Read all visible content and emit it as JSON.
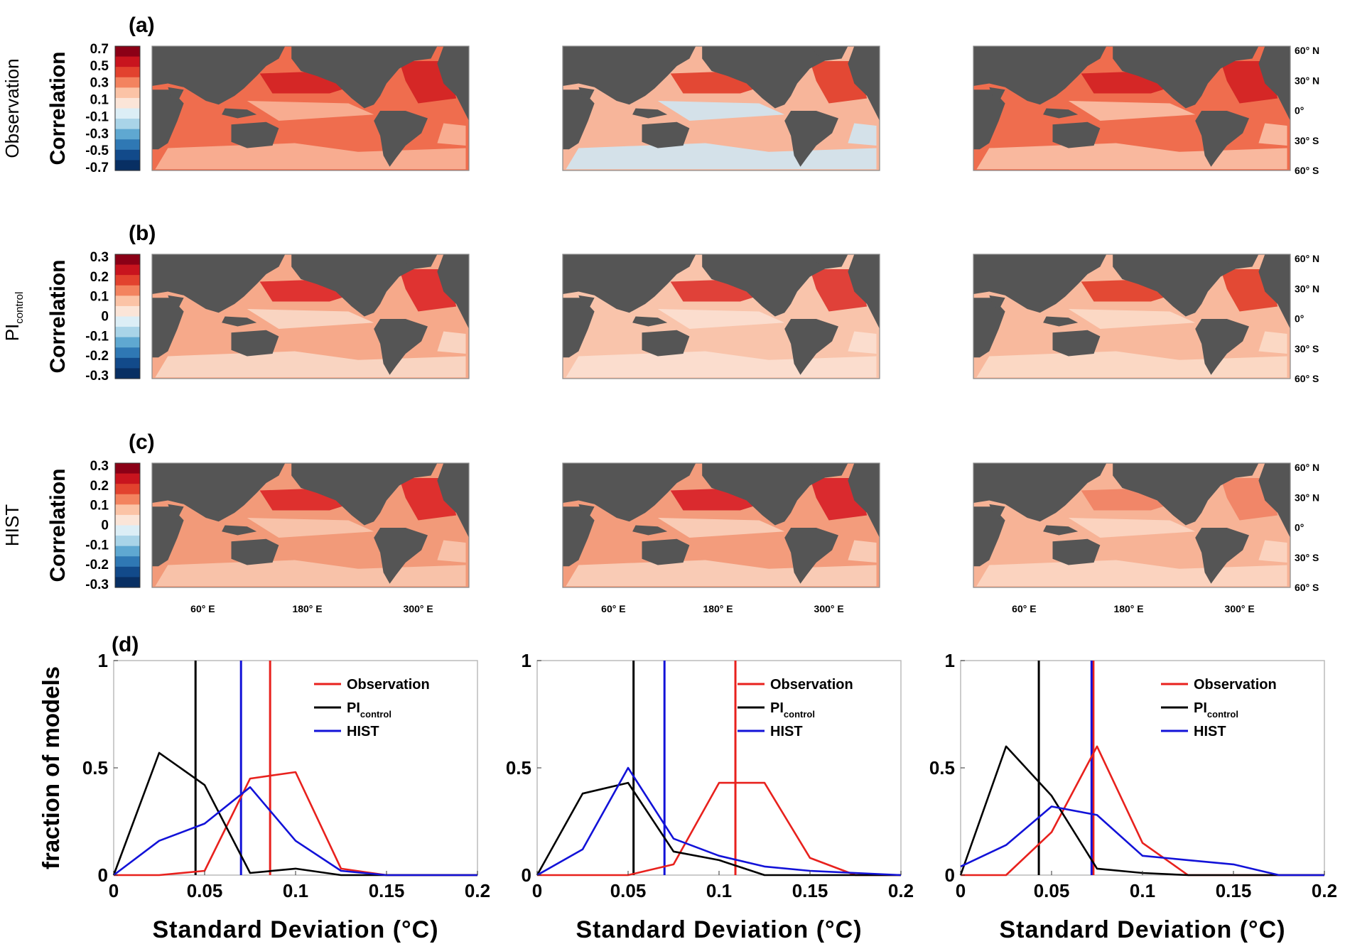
{
  "maps": {
    "panel_labels": [
      "(a)",
      "(b)",
      "(c)"
    ],
    "row_labels": [
      "Observation",
      "PI",
      "HIST"
    ],
    "row_label_subscripts": [
      "",
      "control",
      ""
    ],
    "colorbar_title": "Correlation",
    "colorbar_ticks": [
      [
        "0.7",
        "0.5",
        "0.3",
        "0.1",
        "-0.1",
        "-0.3",
        "-0.5",
        "-0.7"
      ],
      [
        "0.3",
        "0.2",
        "0.1",
        "0",
        "-0.1",
        "-0.2",
        "-0.3"
      ],
      [
        "0.3",
        "0.2",
        "0.1",
        "0",
        "-0.1",
        "-0.2",
        "-0.3"
      ]
    ],
    "colorbar_colors": [
      "#8b0016",
      "#c8141e",
      "#e2422e",
      "#f3835f",
      "#fbc3a6",
      "#fbe5d8",
      "#dceef6",
      "#a9d4e8",
      "#5fa8d1",
      "#2f78b4",
      "#124a8a",
      "#082f63"
    ],
    "lat_ticks": [
      "60° N",
      "30° N",
      "0°",
      "30° S",
      "60° S"
    ],
    "lon_ticks": [
      "60° E",
      "180° E",
      "300° E"
    ],
    "land_color": "#555555",
    "ocean_base_colors": [
      [
        "#ef6d4e",
        "#f7b59a",
        "#ef6d4e"
      ],
      [
        "#f6a98a",
        "#f9c4ab",
        "#f8b99d"
      ],
      [
        "#f29a79",
        "#f39c7c",
        "#f7b396"
      ]
    ]
  },
  "chart_data": [
    {
      "type": "line",
      "panel_label": "(d)",
      "xlabel": "Standard Deviation (°C)",
      "ylabel": "fraction of models",
      "xlim": [
        0,
        0.2
      ],
      "ylim": [
        0,
        1
      ],
      "xticks": [
        "0",
        "0.05",
        "0.1",
        "0.15",
        "0.2"
      ],
      "yticks": [
        "0",
        "0.5",
        "1"
      ],
      "legend_position": "top-right",
      "series": [
        {
          "name": "Observation",
          "color": "#e8211d",
          "x": [
            0,
            0.025,
            0.05,
            0.075,
            0.1,
            0.125,
            0.15,
            0.2
          ],
          "y": [
            0,
            0,
            0.02,
            0.45,
            0.48,
            0.03,
            0,
            0
          ],
          "vline": 0.086
        },
        {
          "name": "PI",
          "name_subscript": "control",
          "color": "#000000",
          "x": [
            0,
            0.025,
            0.05,
            0.075,
            0.1,
            0.125,
            0.15,
            0.2
          ],
          "y": [
            0,
            0.57,
            0.42,
            0.01,
            0.03,
            0,
            0,
            0
          ],
          "vline": 0.045
        },
        {
          "name": "HIST",
          "color": "#1212d8",
          "x": [
            0,
            0.025,
            0.05,
            0.075,
            0.1,
            0.125,
            0.15,
            0.2
          ],
          "y": [
            0,
            0.16,
            0.24,
            0.41,
            0.16,
            0.02,
            0,
            0
          ],
          "vline": 0.07
        }
      ]
    },
    {
      "type": "line",
      "xlabel": "Standard Deviation (°C)",
      "xlim": [
        0,
        0.2
      ],
      "ylim": [
        0,
        1
      ],
      "xticks": [
        "0",
        "0.05",
        "0.1",
        "0.15",
        "0.2"
      ],
      "yticks": [
        "0",
        "0.5",
        "1"
      ],
      "legend_position": "top-right",
      "series": [
        {
          "name": "Observation",
          "color": "#e8211d",
          "x": [
            0,
            0.025,
            0.05,
            0.075,
            0.1,
            0.125,
            0.15,
            0.175,
            0.2
          ],
          "y": [
            0,
            0,
            0,
            0.05,
            0.43,
            0.43,
            0.08,
            0,
            0
          ],
          "vline": 0.109
        },
        {
          "name": "PI",
          "name_subscript": "control",
          "color": "#000000",
          "x": [
            0,
            0.025,
            0.05,
            0.075,
            0.1,
            0.125,
            0.15,
            0.2
          ],
          "y": [
            0,
            0.38,
            0.43,
            0.11,
            0.07,
            0,
            0,
            0
          ],
          "vline": 0.053
        },
        {
          "name": "HIST",
          "color": "#1212d8",
          "x": [
            0,
            0.025,
            0.05,
            0.075,
            0.1,
            0.125,
            0.15,
            0.175,
            0.2
          ],
          "y": [
            0,
            0.12,
            0.5,
            0.17,
            0.09,
            0.04,
            0.02,
            0.01,
            0
          ],
          "vline": 0.07
        }
      ]
    },
    {
      "type": "line",
      "xlabel": "Standard Deviation (°C)",
      "xlim": [
        0,
        0.2
      ],
      "ylim": [
        0,
        1
      ],
      "xticks": [
        "0",
        "0.05",
        "0.1",
        "0.15",
        "0.2"
      ],
      "yticks": [
        "0",
        "0.5",
        "1"
      ],
      "legend_position": "top-right",
      "series": [
        {
          "name": "Observation",
          "color": "#e8211d",
          "x": [
            0,
            0.025,
            0.05,
            0.075,
            0.1,
            0.125,
            0.15,
            0.2
          ],
          "y": [
            0,
            0,
            0.2,
            0.6,
            0.15,
            0,
            0,
            0
          ],
          "vline": 0.073
        },
        {
          "name": "PI",
          "name_subscript": "control",
          "color": "#000000",
          "x": [
            0,
            0.025,
            0.05,
            0.075,
            0.1,
            0.125,
            0.15,
            0.2
          ],
          "y": [
            0,
            0.6,
            0.37,
            0.03,
            0.01,
            0,
            0,
            0
          ],
          "vline": 0.043
        },
        {
          "name": "HIST",
          "color": "#1212d8",
          "x": [
            0,
            0.025,
            0.05,
            0.075,
            0.1,
            0.125,
            0.15,
            0.175,
            0.2
          ],
          "y": [
            0.04,
            0.14,
            0.32,
            0.28,
            0.09,
            0.07,
            0.05,
            0,
            0
          ],
          "vline": 0.072
        }
      ]
    }
  ]
}
